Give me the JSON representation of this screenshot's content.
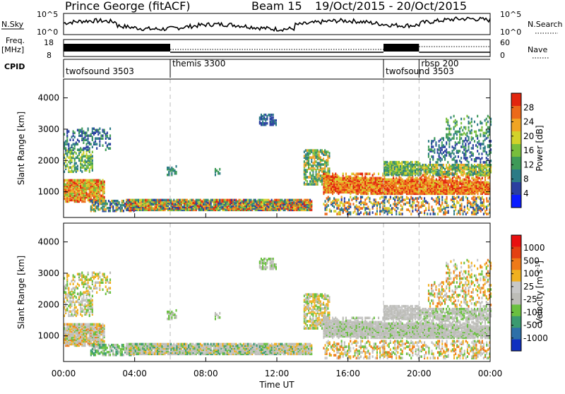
{
  "header": {
    "station": "Prince George (fitACF)",
    "beam": "Beam 15",
    "dates": "19/Oct/2015 - 20/Oct/2015"
  },
  "sidebar_labels": {
    "nsky": "N.Sky",
    "freq": "Freq.",
    "freq_unit": "[MHz]",
    "cpid": "CPID",
    "nsearch": "N.Search",
    "nave": "Nave"
  },
  "strip_ticks": {
    "nsky_left": [
      "10^5",
      "10^0"
    ],
    "nsky_right": [
      "10^5",
      "10^0"
    ],
    "freq_left": [
      "18",
      "8"
    ],
    "nave_right": [
      "60",
      "0"
    ]
  },
  "cpid_segments": [
    {
      "label": "twofsound 3503",
      "start_hour": 0
    },
    {
      "label": "themis 3300",
      "start_hour": 6
    },
    {
      "label": "twofsound 3503",
      "start_hour": 18
    },
    {
      "label": "rbsp 200",
      "start_hour": 20
    }
  ],
  "chart_data": [
    {
      "type": "heatmap",
      "name": "power",
      "ylabel": "Slant Range [km]",
      "xlabel": "Time UT",
      "x_ticks": [
        "00:00",
        "04:00",
        "08:00",
        "12:00",
        "16:00",
        "20:00",
        "00:00"
      ],
      "x_range_hours": [
        0,
        24
      ],
      "ylim": [
        180,
        4600
      ],
      "y_ticks": [
        1000,
        2000,
        3000,
        4000
      ],
      "colorbar": {
        "label": "Power [dB]",
        "ticks": [
          "4",
          "8",
          "12",
          "16",
          "20",
          "24",
          "28"
        ],
        "colors": [
          "#0a1cff",
          "#2a3fa0",
          "#2c7b86",
          "#3e9a58",
          "#78be3c",
          "#d2d22a",
          "#f0a424",
          "#ec6a1a",
          "#e2260e"
        ]
      }
    },
    {
      "type": "heatmap",
      "name": "velocity",
      "ylabel": "Slant Range [km]",
      "xlabel": "Time UT",
      "x_ticks": [
        "00:00",
        "04:00",
        "08:00",
        "12:00",
        "16:00",
        "20:00",
        "00:00"
      ],
      "x_range_hours": [
        0,
        24
      ],
      "ylim": [
        180,
        4600
      ],
      "y_ticks": [
        1000,
        2000,
        3000,
        4000
      ],
      "colorbar": {
        "label": "Velocity [m s^-1]",
        "ticks": [
          "1000",
          "500",
          "100",
          "25",
          "-25",
          "-100",
          "-500",
          "-1000"
        ],
        "colors": [
          "#1030c0",
          "#2d70a8",
          "#3a9a70",
          "#6ac040",
          "#bdbdb8",
          "#c8c8c8",
          "#f0b020",
          "#ef7a18",
          "#e44012",
          "#e81010"
        ]
      }
    }
  ]
}
